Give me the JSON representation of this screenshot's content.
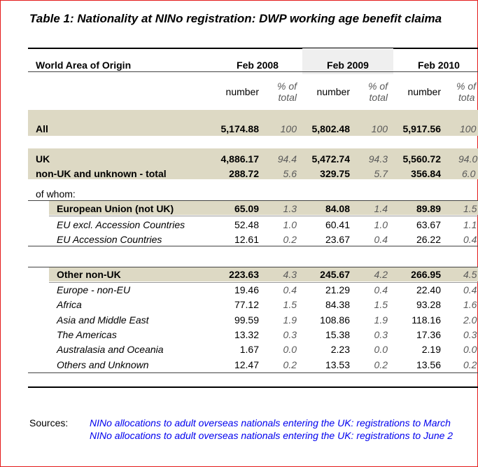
{
  "title": "Table 1: Nationality at NINo registration: DWP working age benefit claima",
  "header": {
    "area_label": "World Area of Origin",
    "periods": [
      "Feb 2008",
      "Feb 2009",
      "Feb 2010"
    ],
    "col_number": "number",
    "col_pct_line1": "% of",
    "col_pct_line2": "total",
    "col_pct_line2_cut": "tota"
  },
  "rows": {
    "all": {
      "label": "All",
      "v": [
        "5,174.88",
        "100",
        "5,802.48",
        "100",
        "5,917.56",
        "100"
      ]
    },
    "uk": {
      "label": "UK",
      "v": [
        "4,886.17",
        "94.4",
        "5,472.74",
        "94.3",
        "5,560.72",
        "94.0"
      ]
    },
    "nonuk": {
      "label": "non-UK and unknown - total",
      "v": [
        "288.72",
        "5.6",
        "329.75",
        "5.7",
        "356.84",
        "6.0"
      ]
    },
    "of_whom": "of whom:",
    "eu": {
      "label": "European Union (not UK)",
      "v": [
        "65.09",
        "1.3",
        "84.08",
        "1.4",
        "89.89",
        "1.5"
      ]
    },
    "eu_excl": {
      "label": "EU excl. Accession Countries",
      "v": [
        "52.48",
        "1.0",
        "60.41",
        "1.0",
        "63.67",
        "1.1"
      ]
    },
    "eu_acc": {
      "label": "EU Accession Countries",
      "v": [
        "12.61",
        "0.2",
        "23.67",
        "0.4",
        "26.22",
        "0.4"
      ]
    },
    "other": {
      "label": "Other non-UK",
      "v": [
        "223.63",
        "4.3",
        "245.67",
        "4.2",
        "266.95",
        "4.5"
      ]
    },
    "europe": {
      "label": "Europe - non-EU",
      "v": [
        "19.46",
        "0.4",
        "21.29",
        "0.4",
        "22.40",
        "0.4"
      ]
    },
    "africa": {
      "label": "Africa",
      "v": [
        "77.12",
        "1.5",
        "84.38",
        "1.5",
        "93.28",
        "1.6"
      ]
    },
    "asia": {
      "label": "Asia and Middle East",
      "v": [
        "99.59",
        "1.9",
        "108.86",
        "1.9",
        "118.16",
        "2.0"
      ]
    },
    "americas": {
      "label": "The Americas",
      "v": [
        "13.32",
        "0.3",
        "15.38",
        "0.3",
        "17.36",
        "0.3"
      ]
    },
    "aus": {
      "label": "Australasia and Oceania",
      "v": [
        "1.67",
        "0.0",
        "2.23",
        "0.0",
        "2.19",
        "0.0"
      ]
    },
    "others": {
      "label": "Others and Unknown",
      "v": [
        "12.47",
        "0.2",
        "13.53",
        "0.2",
        "13.56",
        "0.2"
      ]
    }
  },
  "sources": {
    "label": "Sources:",
    "line1": "NINo allocations to adult overseas nationals entering the UK: registrations to March",
    "line2": "NINo allocations to adult overseas nationals entering the UK: registrations to June 2"
  }
}
